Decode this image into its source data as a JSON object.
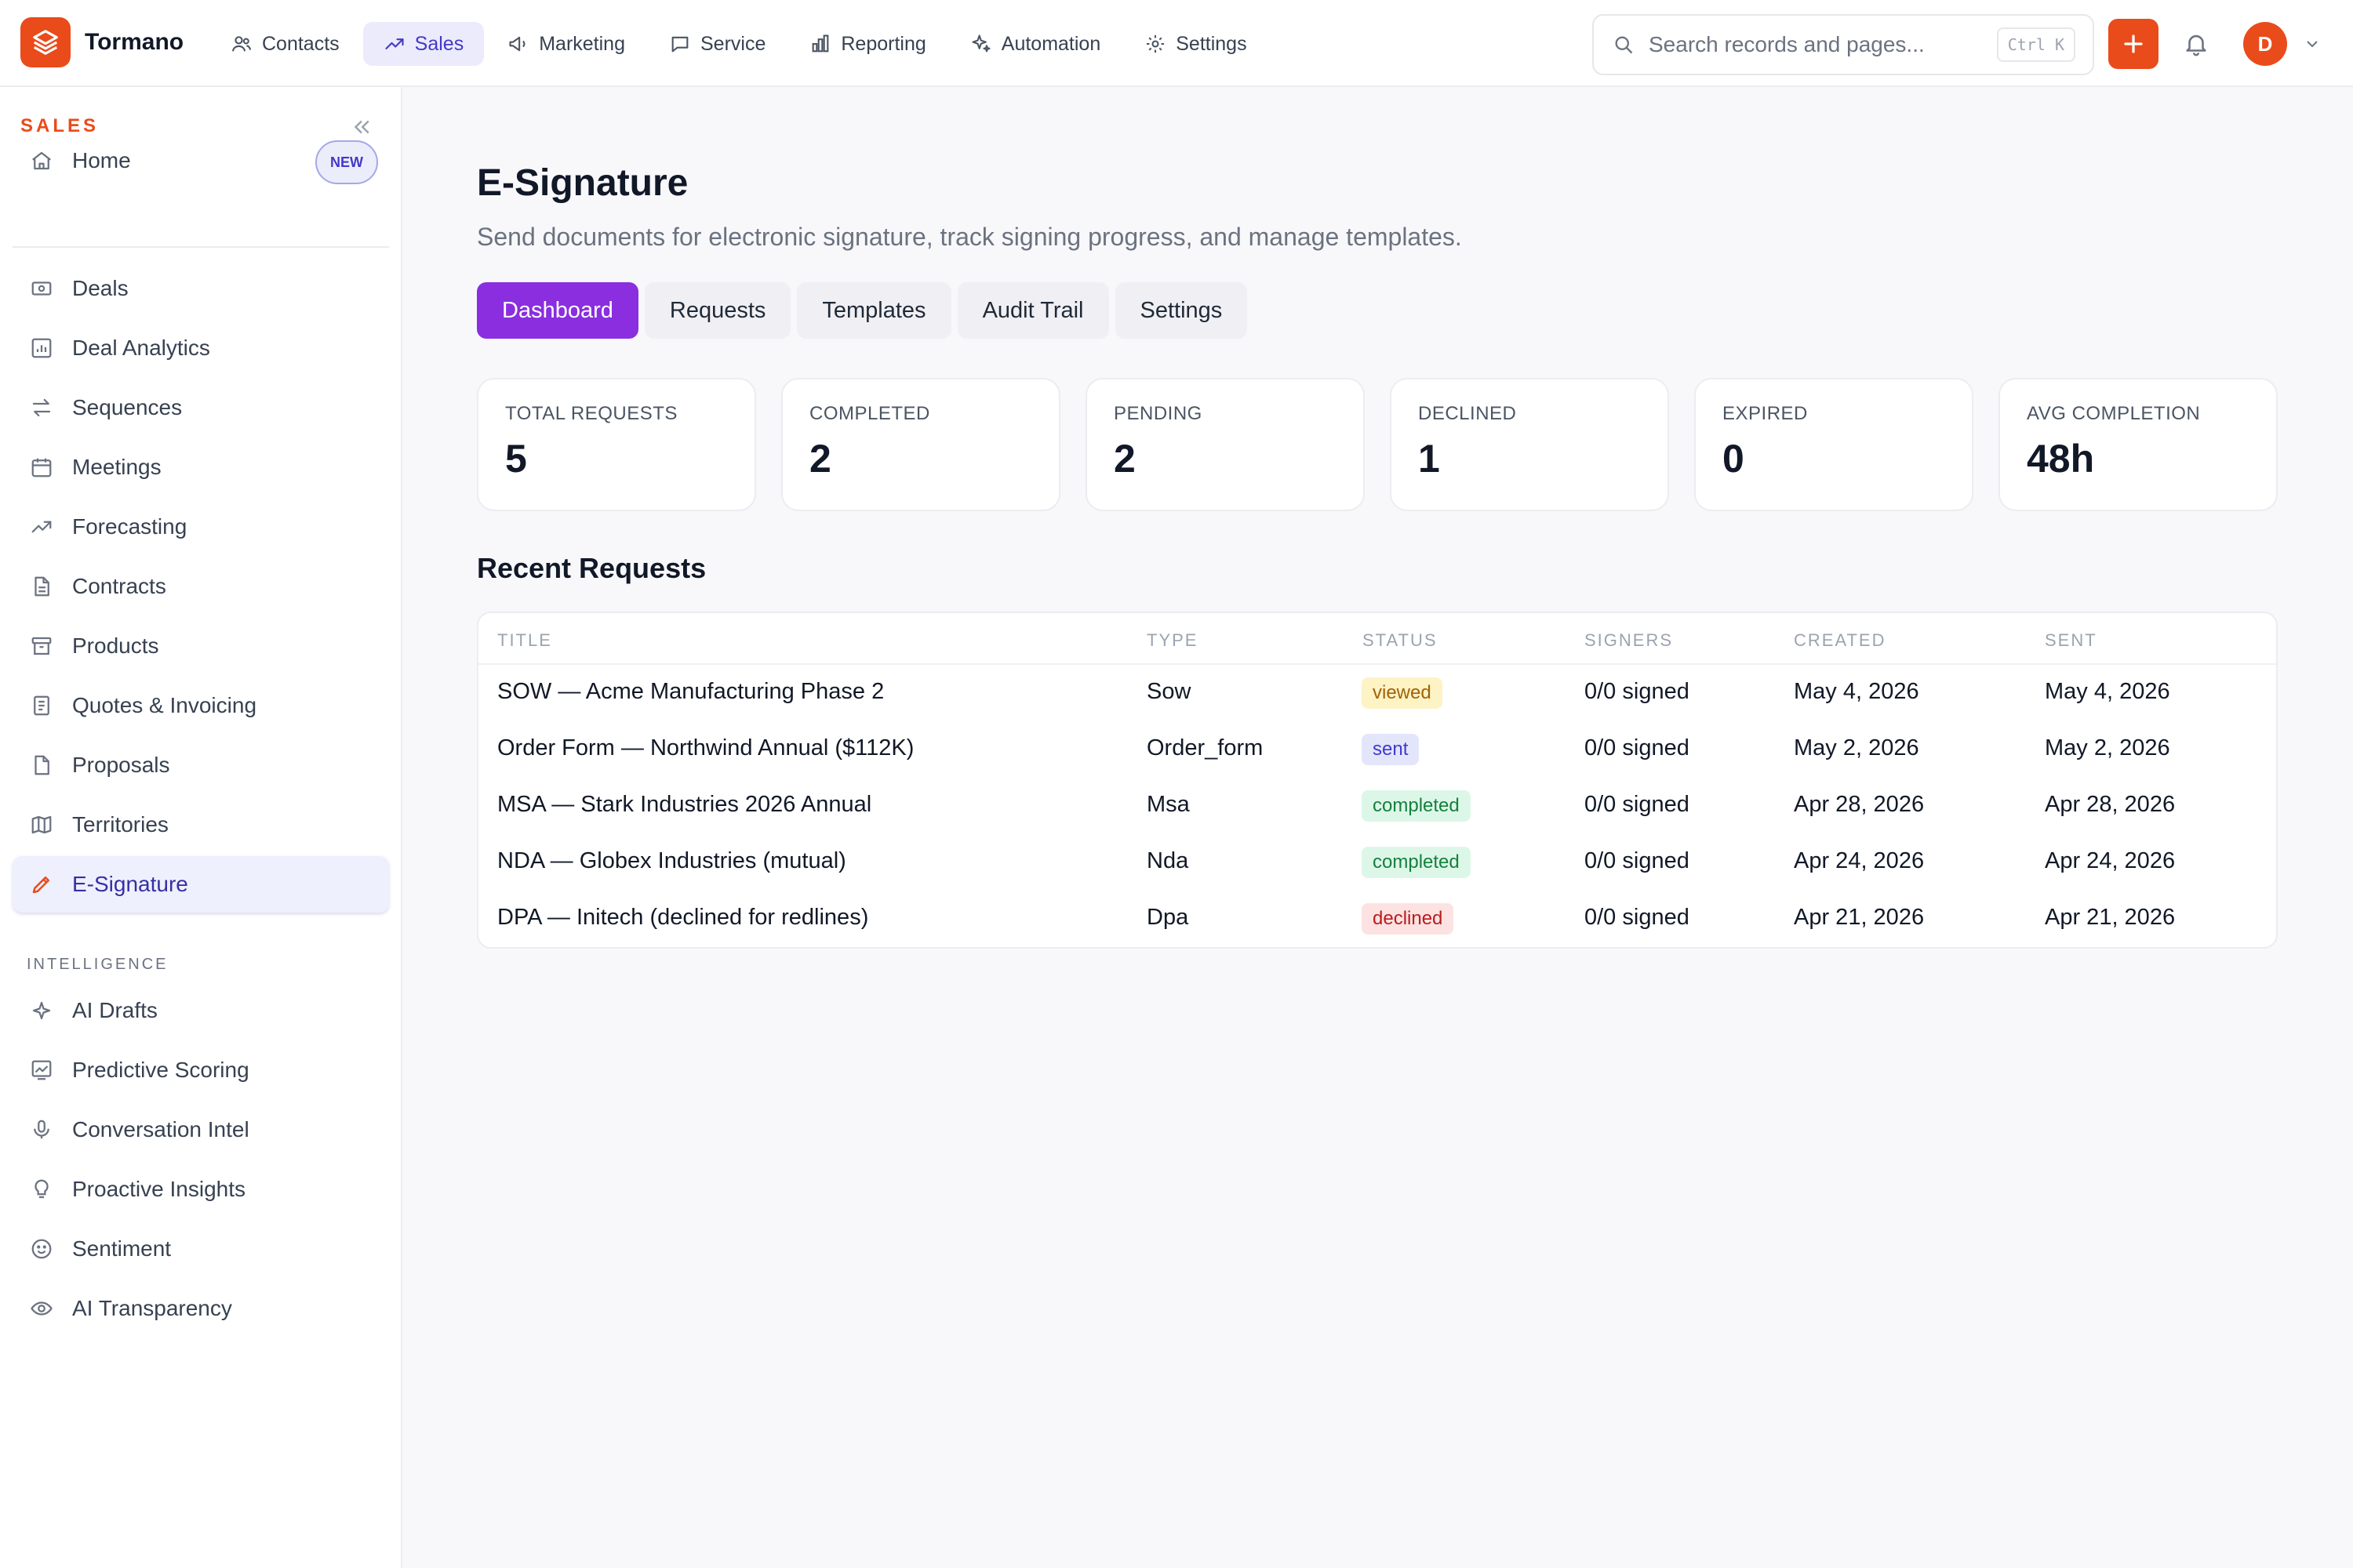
{
  "app": {
    "name": "Tormano",
    "nav": [
      {
        "label": "Contacts",
        "icon": "users-icon"
      },
      {
        "label": "Sales",
        "icon": "trending-up-icon"
      },
      {
        "label": "Marketing",
        "icon": "megaphone-icon"
      },
      {
        "label": "Service",
        "icon": "chat-icon"
      },
      {
        "label": "Reporting",
        "icon": "bar-chart-icon"
      },
      {
        "label": "Automation",
        "icon": "sparkles-icon"
      },
      {
        "label": "Settings",
        "icon": "gear-icon"
      }
    ],
    "active_nav": "Sales",
    "search": {
      "placeholder": "Search records and pages...",
      "shortcut": "Ctrl K"
    },
    "user_initial": "D",
    "accent_color": "#ea4b1a",
    "primary_tab_color": "#8a2ee0"
  },
  "sidebar": {
    "section_title": "SALES",
    "home": {
      "label": "Home",
      "badge": "NEW"
    },
    "items": [
      {
        "label": "Deals",
        "icon": "money-icon"
      },
      {
        "label": "Deal Analytics",
        "icon": "analytics-icon"
      },
      {
        "label": "Sequences",
        "icon": "arrows-icon"
      },
      {
        "label": "Meetings",
        "icon": "calendar-icon"
      },
      {
        "label": "Forecasting",
        "icon": "trending-up-icon"
      },
      {
        "label": "Contracts",
        "icon": "file-icon"
      },
      {
        "label": "Products",
        "icon": "archive-icon"
      },
      {
        "label": "Quotes & Invoicing",
        "icon": "receipt-icon"
      },
      {
        "label": "Proposals",
        "icon": "document-icon"
      },
      {
        "label": "Territories",
        "icon": "map-icon"
      },
      {
        "label": "E-Signature",
        "icon": "pen-icon",
        "active": true
      }
    ],
    "intelligence_title": "INTELLIGENCE",
    "intelligence_items": [
      {
        "label": "AI Drafts",
        "icon": "sparkle-icon"
      },
      {
        "label": "Predictive Scoring",
        "icon": "chart-line-icon"
      },
      {
        "label": "Conversation Intel",
        "icon": "microphone-icon"
      },
      {
        "label": "Proactive Insights",
        "icon": "lightbulb-icon"
      },
      {
        "label": "Sentiment",
        "icon": "smile-icon"
      },
      {
        "label": "AI Transparency",
        "icon": "eye-icon"
      }
    ]
  },
  "main": {
    "title": "E-Signature",
    "subtitle": "Send documents for electronic signature, track signing progress, and manage templates.",
    "tabs": [
      "Dashboard",
      "Requests",
      "Templates",
      "Audit Trail",
      "Settings"
    ],
    "active_tab": "Dashboard",
    "stats": [
      {
        "label": "TOTAL REQUESTS",
        "value": "5"
      },
      {
        "label": "COMPLETED",
        "value": "2"
      },
      {
        "label": "PENDING",
        "value": "2"
      },
      {
        "label": "DECLINED",
        "value": "1"
      },
      {
        "label": "EXPIRED",
        "value": "0"
      },
      {
        "label": "AVG COMPLETION",
        "value": "48h"
      }
    ],
    "recent_title": "Recent Requests",
    "columns": [
      "TITLE",
      "TYPE",
      "STATUS",
      "SIGNERS",
      "CREATED",
      "SENT"
    ],
    "rows": [
      {
        "title": "SOW — Acme Manufacturing Phase 2",
        "type": "Sow",
        "status": "viewed",
        "signers": "0/0 signed",
        "created": "May 4, 2026",
        "sent": "May 4, 2026"
      },
      {
        "title": "Order Form — Northwind Annual ($112K)",
        "type": "Order_form",
        "status": "sent",
        "signers": "0/0 signed",
        "created": "May 2, 2026",
        "sent": "May 2, 2026"
      },
      {
        "title": "MSA — Stark Industries 2026 Annual",
        "type": "Msa",
        "status": "completed",
        "signers": "0/0 signed",
        "created": "Apr 28, 2026",
        "sent": "Apr 28, 2026"
      },
      {
        "title": "NDA — Globex Industries (mutual)",
        "type": "Nda",
        "status": "completed",
        "signers": "0/0 signed",
        "created": "Apr 24, 2026",
        "sent": "Apr 24, 2026"
      },
      {
        "title": "DPA — Initech (declined for redlines)",
        "type": "Dpa",
        "status": "declined",
        "signers": "0/0 signed",
        "created": "Apr 21, 2026",
        "sent": "Apr 21, 2026"
      }
    ]
  }
}
